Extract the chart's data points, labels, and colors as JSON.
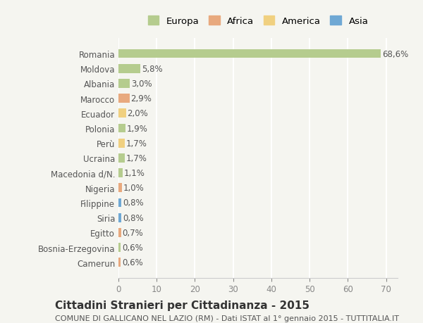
{
  "countries": [
    "Romania",
    "Moldova",
    "Albania",
    "Marocco",
    "Ecuador",
    "Polonia",
    "Perù",
    "Ucraina",
    "Macedonia d/N.",
    "Nigeria",
    "Filippine",
    "Siria",
    "Egitto",
    "Bosnia-Erzegovina",
    "Camerun"
  ],
  "values": [
    68.6,
    5.8,
    3.0,
    2.9,
    2.0,
    1.9,
    1.7,
    1.7,
    1.1,
    1.0,
    0.8,
    0.8,
    0.7,
    0.6,
    0.6
  ],
  "labels": [
    "68,6%",
    "5,8%",
    "3,0%",
    "2,9%",
    "2,0%",
    "1,9%",
    "1,7%",
    "1,7%",
    "1,1%",
    "1,0%",
    "0,8%",
    "0,8%",
    "0,7%",
    "0,6%",
    "0,6%"
  ],
  "continents": [
    "Europa",
    "Europa",
    "Europa",
    "Africa",
    "America",
    "Europa",
    "America",
    "Europa",
    "Europa",
    "Africa",
    "Asia",
    "Asia",
    "Africa",
    "Europa",
    "Africa"
  ],
  "continent_colors": {
    "Europa": "#b5cc8e",
    "Africa": "#e8a97e",
    "America": "#f0d080",
    "Asia": "#6fa8d4"
  },
  "legend_items": [
    "Europa",
    "Africa",
    "America",
    "Asia"
  ],
  "legend_colors": [
    "#b5cc8e",
    "#e8a97e",
    "#f0d080",
    "#6fa8d4"
  ],
  "title": "Cittadini Stranieri per Cittadinanza - 2015",
  "subtitle": "COMUNE DI GALLICANO NEL LAZIO (RM) - Dati ISTAT al 1° gennaio 2015 - TUTTITALIA.IT",
  "xlim": [
    0,
    73
  ],
  "xticks": [
    0,
    10,
    20,
    30,
    40,
    50,
    60,
    70
  ],
  "background_color": "#f5f5f0",
  "grid_color": "#ffffff",
  "bar_height": 0.6,
  "label_fontsize": 8.5,
  "tick_fontsize": 8.5,
  "title_fontsize": 11,
  "subtitle_fontsize": 8
}
